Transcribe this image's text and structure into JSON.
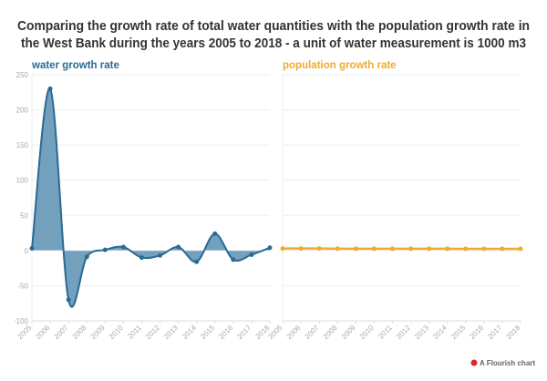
{
  "chart_data": [
    {
      "type": "area",
      "title": "Comparing the growth rate of total water quantities with the population growth rate in the West Bank during the years 2005 to 2018 - a unit of water measurement is 1000 m3",
      "title_lines": [
        "Comparing the growth rate of total water quantities with the population growth rate in",
        "the West Bank during the years 2005 to 2018 - a unit of water measurement is 1000 m3"
      ],
      "panel_title": "water growth rate",
      "color": "#2b6a93",
      "fill": "#6b9bb9",
      "x": [
        "2005",
        "2006",
        "2007",
        "2008",
        "2009",
        "2010",
        "2011",
        "2012",
        "2013",
        "2014",
        "2015",
        "2016",
        "2017",
        "2018"
      ],
      "values": [
        3,
        230,
        -70,
        -9,
        1,
        5,
        -10,
        -7,
        5,
        -16,
        24,
        -13,
        -6,
        4
      ],
      "ylim": [
        -100,
        250
      ],
      "yticks": [
        -100,
        -50,
        0,
        50,
        100,
        150,
        200,
        250
      ],
      "grid": true,
      "curve": "smooth"
    },
    {
      "type": "line",
      "panel_title": "population growth rate",
      "color": "#f0ab2e",
      "x": [
        "2005",
        "2006",
        "2007",
        "2008",
        "2009",
        "2010",
        "2011",
        "2012",
        "2013",
        "2014",
        "2015",
        "2016",
        "2017",
        "2018"
      ],
      "values": [
        2.9,
        2.9,
        2.9,
        2.7,
        2.6,
        2.6,
        2.5,
        2.5,
        2.5,
        2.5,
        2.4,
        2.4,
        2.4,
        2.4
      ],
      "ylim": [
        -100,
        250
      ],
      "yticks": [
        -100,
        -50,
        0,
        50,
        100,
        150,
        200,
        250
      ],
      "grid": true
    }
  ],
  "credit": "A Flourish chart"
}
